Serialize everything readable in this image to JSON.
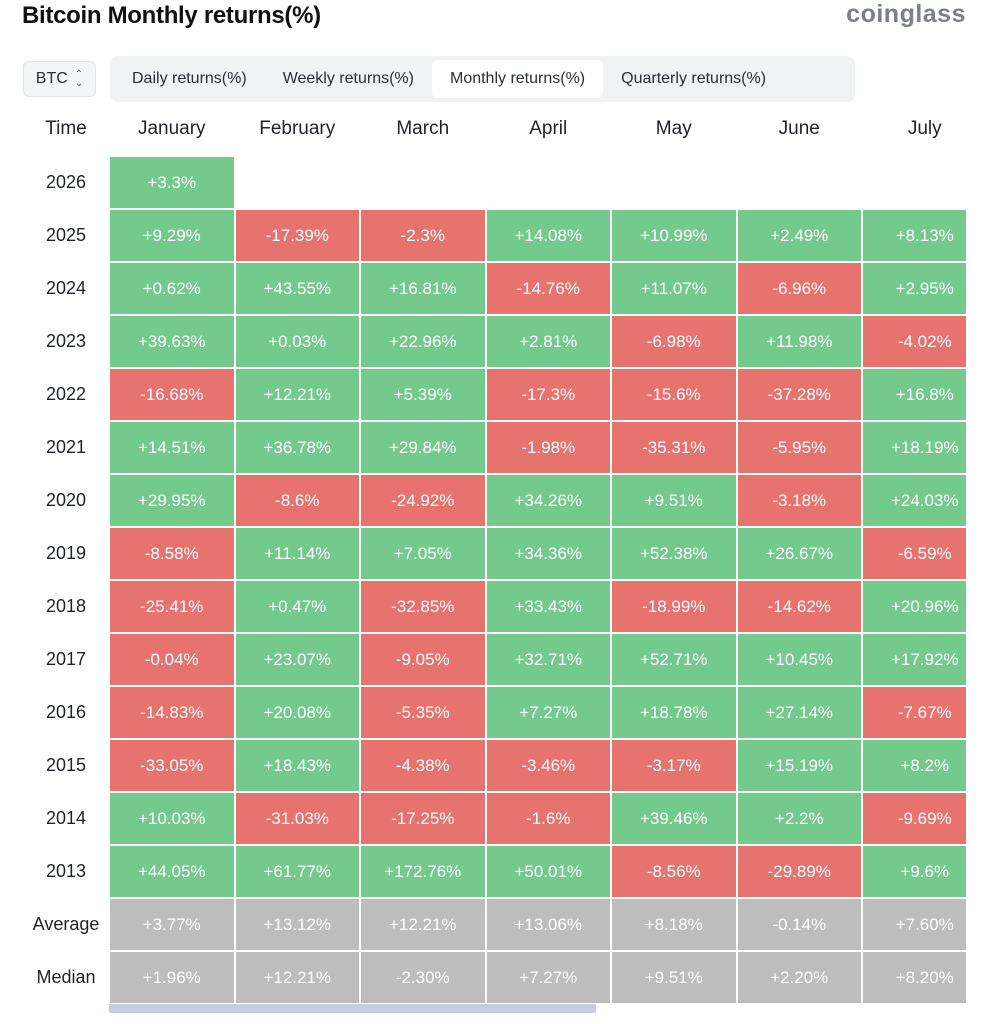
{
  "header": {
    "title": "Bitcoin Monthly returns(%)",
    "brand": "coinglass"
  },
  "controls": {
    "coin": "BTC",
    "tabs": [
      {
        "label": "Daily returns(%)",
        "active": false
      },
      {
        "label": "Weekly returns(%)",
        "active": false
      },
      {
        "label": "Monthly returns(%)",
        "active": true
      },
      {
        "label": "Quarterly returns(%)",
        "active": false
      }
    ]
  },
  "colors": {
    "positive": "#74c98c",
    "negative": "#e6736e",
    "summary": "#bdbdbd"
  },
  "chart_data": {
    "type": "table",
    "title": "Bitcoin Monthly returns(%)",
    "row_header": "Time",
    "columns": [
      "January",
      "February",
      "March",
      "April",
      "May",
      "June",
      "July"
    ],
    "rows": [
      {
        "label": "2026",
        "values": [
          "+3.3%",
          null,
          null,
          null,
          null,
          null,
          null
        ]
      },
      {
        "label": "2025",
        "values": [
          "+9.29%",
          "-17.39%",
          "-2.3%",
          "+14.08%",
          "+10.99%",
          "+2.49%",
          "+8.13%"
        ]
      },
      {
        "label": "2024",
        "values": [
          "+0.62%",
          "+43.55%",
          "+16.81%",
          "-14.76%",
          "+11.07%",
          "-6.96%",
          "+2.95%"
        ]
      },
      {
        "label": "2023",
        "values": [
          "+39.63%",
          "+0.03%",
          "+22.96%",
          "+2.81%",
          "-6.98%",
          "+11.98%",
          "-4.02%"
        ]
      },
      {
        "label": "2022",
        "values": [
          "-16.68%",
          "+12.21%",
          "+5.39%",
          "-17.3%",
          "-15.6%",
          "-37.28%",
          "+16.8%"
        ]
      },
      {
        "label": "2021",
        "values": [
          "+14.51%",
          "+36.78%",
          "+29.84%",
          "-1.98%",
          "-35.31%",
          "-5.95%",
          "+18.19%"
        ]
      },
      {
        "label": "2020",
        "values": [
          "+29.95%",
          "-8.6%",
          "-24.92%",
          "+34.26%",
          "+9.51%",
          "-3.18%",
          "+24.03%"
        ]
      },
      {
        "label": "2019",
        "values": [
          "-8.58%",
          "+11.14%",
          "+7.05%",
          "+34.36%",
          "+52.38%",
          "+26.67%",
          "-6.59%"
        ]
      },
      {
        "label": "2018",
        "values": [
          "-25.41%",
          "+0.47%",
          "-32.85%",
          "+33.43%",
          "-18.99%",
          "-14.62%",
          "+20.96%"
        ]
      },
      {
        "label": "2017",
        "values": [
          "-0.04%",
          "+23.07%",
          "-9.05%",
          "+32.71%",
          "+52.71%",
          "+10.45%",
          "+17.92%"
        ]
      },
      {
        "label": "2016",
        "values": [
          "-14.83%",
          "+20.08%",
          "-5.35%",
          "+7.27%",
          "+18.78%",
          "+27.14%",
          "-7.67%"
        ]
      },
      {
        "label": "2015",
        "values": [
          "-33.05%",
          "+18.43%",
          "-4.38%",
          "-3.46%",
          "-3.17%",
          "+15.19%",
          "+8.2%"
        ]
      },
      {
        "label": "2014",
        "values": [
          "+10.03%",
          "-31.03%",
          "-17.25%",
          "-1.6%",
          "+39.46%",
          "+2.2%",
          "-9.69%"
        ]
      },
      {
        "label": "2013",
        "values": [
          "+44.05%",
          "+61.77%",
          "+172.76%",
          "+50.01%",
          "-8.56%",
          "-29.89%",
          "+9.6%"
        ]
      }
    ],
    "summary_rows": [
      {
        "label": "Average",
        "values": [
          "+3.77%",
          "+13.12%",
          "+12.21%",
          "+13.06%",
          "+8.18%",
          "-0.14%",
          "+7.60%"
        ]
      },
      {
        "label": "Median",
        "values": [
          "+1.96%",
          "+12.21%",
          "-2.30%",
          "+7.27%",
          "+9.51%",
          "+2.20%",
          "+8.20%"
        ]
      }
    ]
  }
}
